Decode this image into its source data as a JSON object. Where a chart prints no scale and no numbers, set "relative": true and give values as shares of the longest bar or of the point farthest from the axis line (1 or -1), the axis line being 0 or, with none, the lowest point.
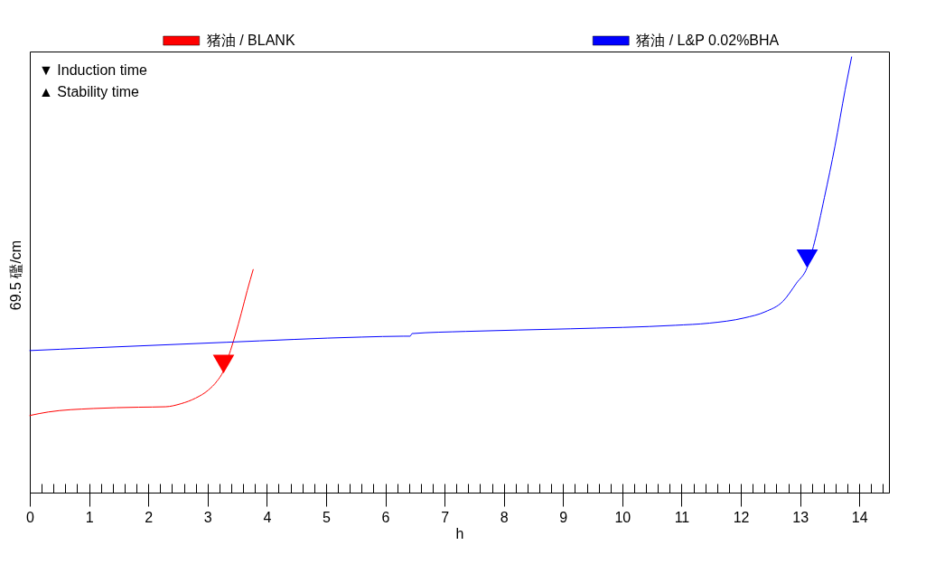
{
  "chart_data": {
    "type": "line",
    "relative": true,
    "xlabel": "h",
    "ylabel": "69.5 礛/cm",
    "legend": "top",
    "annotations": [
      "▼ Induction time",
      "▲ Stability time"
    ],
    "xlim": [
      0,
      14.5
    ],
    "xticks": [
      0,
      {
        "value": 0.2,
        "label": null
      },
      {
        "value": 0.4,
        "label": null
      },
      {
        "value": 0.6,
        "label": null
      },
      {
        "value": 0.8,
        "label": null
      },
      1,
      {
        "value": 1.2,
        "label": null
      },
      {
        "value": 1.4,
        "label": null
      },
      {
        "value": 1.6,
        "label": null
      },
      {
        "value": 1.8,
        "label": null
      },
      2,
      {
        "value": 2.2,
        "label": null
      },
      {
        "value": 2.4,
        "label": null
      },
      {
        "value": 2.6,
        "label": null
      },
      {
        "value": 2.8,
        "label": null
      },
      3,
      {
        "value": 3.2,
        "label": null
      },
      {
        "value": 3.4,
        "label": null
      },
      {
        "value": 3.6,
        "label": null
      },
      {
        "value": 3.8,
        "label": null
      },
      4,
      {
        "value": 4.2,
        "label": null
      },
      {
        "value": 4.4,
        "label": null
      },
      {
        "value": 4.6,
        "label": null
      },
      {
        "value": 4.8,
        "label": null
      },
      5,
      {
        "value": 5.2,
        "label": null
      },
      {
        "value": 5.4,
        "label": null
      },
      {
        "value": 5.6,
        "label": null
      },
      {
        "value": 5.8,
        "label": null
      },
      6,
      {
        "value": 6.2,
        "label": null
      },
      {
        "value": 6.4,
        "label": null
      },
      {
        "value": 6.6,
        "label": null
      },
      {
        "value": 6.8,
        "label": null
      },
      7,
      {
        "value": 7.2,
        "label": null
      },
      {
        "value": 7.4,
        "label": null
      },
      {
        "value": 7.6,
        "label": null
      },
      {
        "value": 7.8,
        "label": null
      },
      8,
      {
        "value": 8.2,
        "label": null
      },
      {
        "value": 8.4,
        "label": null
      },
      {
        "value": 8.6,
        "label": null
      },
      {
        "value": 8.8,
        "label": null
      },
      9,
      {
        "value": 9.2,
        "label": null
      },
      {
        "value": 9.4,
        "label": null
      },
      {
        "value": 9.6,
        "label": null
      },
      {
        "value": 9.8,
        "label": null
      },
      10,
      {
        "value": 10.2,
        "label": null
      },
      {
        "value": 10.4,
        "label": null
      },
      {
        "value": 10.6,
        "label": null
      },
      {
        "value": 10.8,
        "label": null
      },
      11,
      {
        "value": 11.2,
        "label": null
      },
      {
        "value": 11.4,
        "label": null
      },
      {
        "value": 11.6,
        "label": null
      },
      {
        "value": 11.8,
        "label": null
      },
      12,
      {
        "value": 12.2,
        "label": null
      },
      {
        "value": 12.4,
        "label": null
      },
      {
        "value": 12.6,
        "label": null
      },
      {
        "value": 12.8,
        "label": null
      },
      13,
      {
        "value": 13.2,
        "label": null
      },
      {
        "value": 13.4,
        "label": null
      },
      {
        "value": 13.6,
        "label": null
      },
      {
        "value": 13.8,
        "label": null
      },
      14,
      {
        "value": 14.2,
        "label": null
      },
      {
        "value": 14.4,
        "label": null
      }
    ],
    "series": [
      {
        "name": "猪油 / BLANK",
        "color": "#ff0000",
        "x": [
          0,
          0.31,
          1.07,
          1.84,
          2.29,
          2.55,
          2.8,
          3.01,
          3.16,
          3.26,
          3.36,
          3.47,
          3.57,
          3.67,
          3.77
        ],
        "values": [
          0.177,
          0.185,
          0.193,
          0.196,
          0.197,
          0.204,
          0.217,
          0.235,
          0.256,
          0.277,
          0.315,
          0.363,
          0.412,
          0.464,
          0.512
        ]
      },
      {
        "name": "猪油 / L&P 0.02%BHA",
        "color": "#0000ff",
        "x": [
          0,
          1.02,
          3.31,
          5.6,
          6.31,
          6.42,
          6.45,
          7.36,
          9.13,
          10.89,
          11.47,
          12.06,
          12.41,
          12.71,
          12.94,
          13.12,
          13.24,
          13.41,
          13.59,
          13.76,
          13.87
        ],
        "values": [
          0.326,
          0.332,
          0.345,
          0.357,
          0.359,
          0.359,
          0.365,
          0.37,
          0.376,
          0.384,
          0.389,
          0.401,
          0.415,
          0.439,
          0.481,
          0.517,
          0.573,
          0.677,
          0.796,
          0.924,
          1.0
        ]
      },
      {
        "type": "scatter",
        "marker": "triangle",
        "colors": [
          "#ff0000",
          "#0000ff"
        ],
        "x": [
          3.27,
          13.12
        ],
        "values": [
          0.295,
          0.537
        ]
      }
    ]
  }
}
